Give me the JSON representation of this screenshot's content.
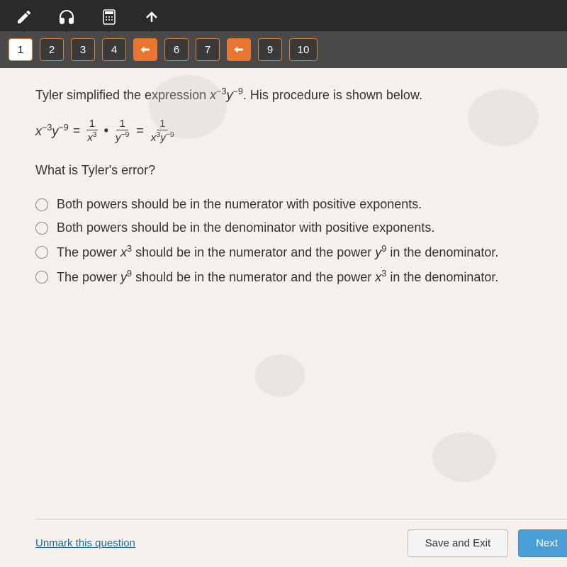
{
  "toolbar": {
    "tools": [
      {
        "name": "pencil-icon"
      },
      {
        "name": "headphones-icon"
      },
      {
        "name": "calculator-icon"
      },
      {
        "name": "upload-icon"
      }
    ]
  },
  "nav": {
    "items": [
      {
        "label": "1",
        "active": true,
        "arrow": false
      },
      {
        "label": "2",
        "active": false,
        "arrow": false
      },
      {
        "label": "3",
        "active": false,
        "arrow": false
      },
      {
        "label": "4",
        "active": false,
        "arrow": false
      },
      {
        "label": "",
        "active": false,
        "arrow": true
      },
      {
        "label": "6",
        "active": false,
        "arrow": false
      },
      {
        "label": "7",
        "active": false,
        "arrow": false
      },
      {
        "label": "",
        "active": false,
        "arrow": true
      },
      {
        "label": "9",
        "active": false,
        "arrow": false
      },
      {
        "label": "10",
        "active": false,
        "arrow": false,
        "wide": true
      }
    ]
  },
  "question": {
    "intro_prefix": "Tyler simplified the expression ",
    "intro_expr_var1": "x",
    "intro_expr_exp1": "−3",
    "intro_expr_var2": "y",
    "intro_expr_exp2": "−9",
    "intro_suffix": ". His procedure is shown below.",
    "work": {
      "lhs_var1": "x",
      "lhs_exp1": "−3",
      "lhs_var2": "y",
      "lhs_exp2": "−9",
      "frac1_num": "1",
      "frac1_den_var": "x",
      "frac1_den_exp": "3",
      "frac2_num": "1",
      "frac2_den_var": "y",
      "frac2_den_exp": "−9",
      "frac3_num": "1",
      "frac3_den": "x³y⁻⁹"
    },
    "prompt": "What is Tyler's error?",
    "options": [
      "Both powers should be in the numerator with positive exponents.",
      "Both powers should be in the denominator with positive exponents.",
      "The power |x|3| should be in the numerator and the power |y|9| in the denominator.",
      "The power |y|9| should be in the numerator and the power |x|3| in the denominator."
    ]
  },
  "footer": {
    "unmark": "Unmark this question",
    "save": "Save and Exit",
    "next": "Next"
  },
  "colors": {
    "accent": "#e8762e",
    "nav_border": "#d0843a",
    "link": "#1a6aa3",
    "next_bg": "#4a9fd8",
    "content_bg": "#f5f0eb"
  }
}
